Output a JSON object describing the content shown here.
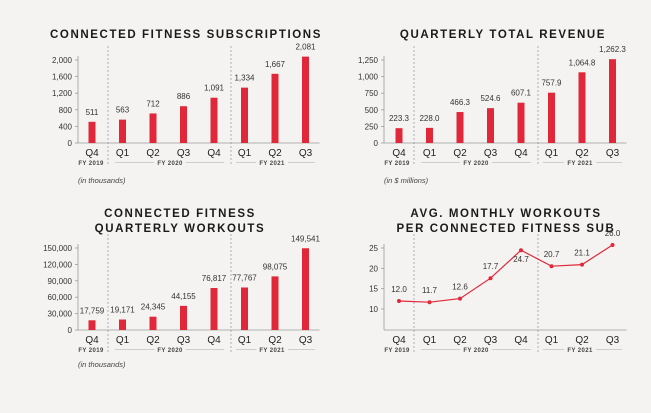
{
  "colors": {
    "accent": "#e0283a",
    "axis": "#9a9a9a",
    "divider": "#8b8fa8"
  },
  "chart_data": [
    {
      "id": "subs",
      "type": "bar",
      "title": [
        "CONNECTED FITNESS SUBSCRIPTIONS"
      ],
      "categories": [
        "Q4",
        "Q1",
        "Q2",
        "Q3",
        "Q4",
        "Q1",
        "Q2",
        "Q3"
      ],
      "values": [
        511,
        563,
        712,
        886,
        1091,
        1334,
        1667,
        2081
      ],
      "value_labels": [
        "511",
        "563",
        "712",
        "886",
        "1,091",
        "1,334",
        "1,667",
        "2,081"
      ],
      "yticks": [
        "0",
        "400",
        "800",
        "1,200",
        "1,600",
        "2,000"
      ],
      "ylim": [
        0,
        2000
      ],
      "groups": [
        "FY 2019",
        "FY 2020",
        "FY 2021"
      ],
      "note": "(in thousands)",
      "grid": false
    },
    {
      "id": "revenue",
      "type": "bar",
      "title": [
        "QUARTERLY TOTAL REVENUE"
      ],
      "categories": [
        "Q4",
        "Q1",
        "Q2",
        "Q3",
        "Q4",
        "Q1",
        "Q2",
        "Q3"
      ],
      "values": [
        223.3,
        228.0,
        466.3,
        524.6,
        607.1,
        757.9,
        1064.8,
        1262.3
      ],
      "value_labels": [
        "223.3",
        "228.0",
        "466.3",
        "524.6",
        "607.1",
        "757.9",
        "1,064.8",
        "1,262.3"
      ],
      "yticks": [
        "0",
        "250",
        "500",
        "750",
        "1,000",
        "1,250"
      ],
      "ylim": [
        0,
        1250
      ],
      "groups": [
        "FY 2019",
        "FY 2020",
        "FY 2021"
      ],
      "note": "(in $ millions)",
      "grid": false
    },
    {
      "id": "workouts",
      "type": "bar",
      "title": [
        "CONNECTED FITNESS",
        "QUARTERLY WORKOUTS"
      ],
      "categories": [
        "Q4",
        "Q1",
        "Q2",
        "Q3",
        "Q4",
        "Q1",
        "Q2",
        "Q3"
      ],
      "values": [
        17759,
        19171,
        24345,
        44155,
        76817,
        77767,
        98075,
        149541
      ],
      "value_labels": [
        "17,759",
        "19,171",
        "24,345",
        "44,155",
        "76,817",
        "77,767",
        "98,075",
        "149,541"
      ],
      "yticks": [
        "0",
        "30,000",
        "60,000",
        "90,000",
        "120,000",
        "150,000"
      ],
      "ylim": [
        0,
        150000
      ],
      "groups": [
        "FY 2019",
        "FY 2020",
        "FY 2021"
      ],
      "note": "(in thousands)",
      "grid": false
    },
    {
      "id": "avg",
      "type": "line",
      "title": [
        "AVG. MONTHLY WORKOUTS",
        "PER CONNECTED FITNESS SUB"
      ],
      "categories": [
        "Q4",
        "Q1",
        "Q2",
        "Q3",
        "Q4",
        "Q1",
        "Q2",
        "Q3"
      ],
      "values": [
        12.0,
        11.7,
        12.6,
        17.7,
        24.7,
        20.7,
        21.1,
        26.0
      ],
      "value_labels": [
        "12.0",
        "11.7",
        "12.6",
        "17.7",
        "24.7",
        "20.7",
        "21.1",
        "26.0"
      ],
      "yticks": [
        "10",
        "15",
        "20",
        "25"
      ],
      "ylim": [
        10,
        25
      ],
      "groups": [
        "FY 2019",
        "FY 2020",
        "FY 2021"
      ],
      "note": "",
      "grid": false
    }
  ]
}
